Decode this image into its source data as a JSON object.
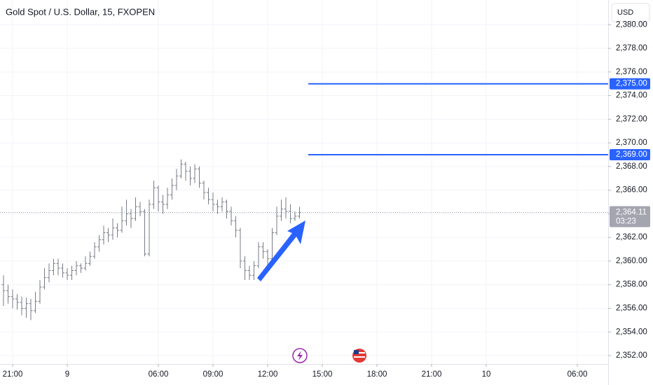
{
  "chart_data": {
    "type": "ohlc",
    "title": "Gold Spot / U.S. Dollar, 15, FXOPEN",
    "currency": "USD",
    "color": "#787b86",
    "level_color": "#2962ff",
    "grid": true,
    "x": [
      -2,
      -1,
      0,
      1,
      2,
      3,
      4,
      5,
      6,
      7,
      8,
      9,
      10,
      11,
      12,
      13,
      14,
      15,
      16,
      17,
      18,
      19,
      20,
      21,
      22,
      23,
      24,
      25,
      26,
      27,
      28,
      29,
      30,
      31,
      32,
      33,
      34,
      35,
      36,
      37,
      38,
      39,
      40,
      41,
      42,
      43,
      44,
      45,
      46,
      47,
      48,
      49,
      50,
      51,
      52,
      53,
      54,
      55,
      56,
      57,
      58,
      59,
      60,
      61,
      62,
      63
    ],
    "open": [
      2358.0,
      2357.5,
      2357.0,
      2356.8,
      2356.5,
      2356.0,
      2356.4,
      2355.8,
      2356.6,
      2357.8,
      2358.6,
      2359.2,
      2359.8,
      2359.4,
      2359.0,
      2358.8,
      2359.2,
      2359.6,
      2359.4,
      2359.8,
      2360.4,
      2361.2,
      2361.8,
      2362.4,
      2362.2,
      2362.8,
      2362.6,
      2363.4,
      2364.0,
      2363.6,
      2364.6,
      2364.2,
      2360.6,
      2364.8,
      2366.2,
      2365.0,
      2364.8,
      2365.6,
      2366.4,
      2367.2,
      2368.2,
      2367.6,
      2367.0,
      2367.8,
      2366.6,
      2365.8,
      2365.2,
      2364.8,
      2364.6,
      2365.0,
      2364.2,
      2363.4,
      2362.6,
      2360.0,
      2359.2,
      2358.8,
      2359.6,
      2361.2,
      2360.8,
      2360.2,
      2362.4,
      2363.8,
      2364.4,
      2364.2,
      2363.6,
      2363.8
    ],
    "high": [
      2358.8,
      2358.0,
      2357.6,
      2357.2,
      2357.0,
      2356.9,
      2356.8,
      2357.4,
      2358.4,
      2359.4,
      2359.8,
      2360.2,
      2360.2,
      2359.8,
      2359.4,
      2359.6,
      2360.0,
      2359.8,
      2360.4,
      2360.8,
      2361.6,
      2362.2,
      2363.0,
      2362.8,
      2363.6,
      2363.2,
      2364.6,
      2365.2,
      2364.4,
      2365.4,
      2365.0,
      2364.4,
      2365.2,
      2366.8,
      2366.4,
      2365.6,
      2366.2,
      2367.0,
      2367.8,
      2368.6,
      2368.4,
      2368.0,
      2368.2,
      2368.0,
      2366.8,
      2366.2,
      2365.8,
      2365.2,
      2365.4,
      2365.2,
      2364.6,
      2363.8,
      2362.8,
      2360.4,
      2359.6,
      2360.0,
      2361.6,
      2361.6,
      2361.0,
      2362.8,
      2364.6,
      2365.2,
      2365.4,
      2364.8,
      2364.2,
      2364.6
    ],
    "low": [
      2356.2,
      2356.4,
      2356.0,
      2355.9,
      2355.4,
      2355.2,
      2355.0,
      2355.6,
      2356.4,
      2357.6,
      2358.2,
      2358.8,
      2358.8,
      2358.6,
      2358.4,
      2358.4,
      2358.8,
      2359.0,
      2359.2,
      2359.6,
      2360.2,
      2360.8,
      2361.4,
      2361.6,
      2361.8,
      2362.0,
      2362.4,
      2363.0,
      2362.8,
      2363.4,
      2363.8,
      2360.4,
      2360.4,
      2364.4,
      2364.2,
      2364.0,
      2364.4,
      2365.2,
      2366.0,
      2367.0,
      2366.8,
      2366.4,
      2366.6,
      2366.2,
      2365.2,
      2364.8,
      2364.2,
      2364.0,
      2364.2,
      2363.6,
      2363.0,
      2362.0,
      2359.4,
      2358.4,
      2358.4,
      2358.4,
      2359.4,
      2360.2,
      2359.6,
      2360.0,
      2362.2,
      2363.4,
      2363.6,
      2363.2,
      2363.4,
      2363.6
    ],
    "close": [
      2357.5,
      2357.0,
      2356.8,
      2356.5,
      2356.0,
      2356.4,
      2355.8,
      2356.6,
      2357.8,
      2358.6,
      2359.2,
      2359.8,
      2359.4,
      2359.0,
      2358.8,
      2359.2,
      2359.6,
      2359.4,
      2359.8,
      2360.4,
      2361.2,
      2361.8,
      2362.4,
      2362.2,
      2362.8,
      2362.6,
      2363.4,
      2364.0,
      2363.6,
      2364.6,
      2364.2,
      2360.6,
      2364.8,
      2366.2,
      2365.0,
      2364.8,
      2365.6,
      2366.4,
      2367.2,
      2368.2,
      2367.6,
      2367.0,
      2367.8,
      2366.6,
      2365.8,
      2365.2,
      2364.8,
      2364.6,
      2365.0,
      2364.2,
      2363.4,
      2362.6,
      2360.0,
      2359.2,
      2358.8,
      2359.6,
      2361.2,
      2360.8,
      2360.2,
      2362.4,
      2363.8,
      2364.4,
      2364.2,
      2363.6,
      2363.8,
      2364.11
    ],
    "xlim": [
      -2.77,
      130.77
    ],
    "xticks": [
      {
        "value": 0,
        "label": "21:00"
      },
      {
        "value": 12,
        "label": "9"
      },
      {
        "value": 32,
        "label": "06:00"
      },
      {
        "value": 44,
        "label": "09:00"
      },
      {
        "value": 56,
        "label": "12:00"
      },
      {
        "value": 68,
        "label": "15:00"
      },
      {
        "value": 80,
        "label": "18:00"
      },
      {
        "value": 92,
        "label": "21:00"
      },
      {
        "value": 104,
        "label": "10"
      },
      {
        "value": 124,
        "label": "06:00"
      }
    ],
    "ylim": [
      2351.29,
      2382.09
    ],
    "yticks": [
      {
        "value": 2352,
        "label": "2,352.00"
      },
      {
        "value": 2354,
        "label": "2,354.00"
      },
      {
        "value": 2356,
        "label": "2,356.00"
      },
      {
        "value": 2358,
        "label": "2,358.00"
      },
      {
        "value": 2360,
        "label": "2,360.00"
      },
      {
        "value": 2362,
        "label": "2,362.00"
      },
      {
        "value": 2364,
        "label": "2,364.00"
      },
      {
        "value": 2366,
        "label": "2,366.00"
      },
      {
        "value": 2368,
        "label": "2,368.00"
      },
      {
        "value": 2370,
        "label": "2,370.00"
      },
      {
        "value": 2372,
        "label": "2,372.00"
      },
      {
        "value": 2374,
        "label": "2,374.00"
      },
      {
        "value": 2376,
        "label": "2,376.00"
      },
      {
        "value": 2378,
        "label": "2,378.00"
      },
      {
        "value": 2380,
        "label": "2,380.00"
      }
    ],
    "levels": [
      {
        "value": 2375,
        "label": "2,375.00"
      },
      {
        "value": 2369,
        "label": "2,369.00"
      }
    ],
    "last": {
      "value": 2364.11,
      "label": "2,364.11"
    },
    "countdown": "03:23"
  }
}
